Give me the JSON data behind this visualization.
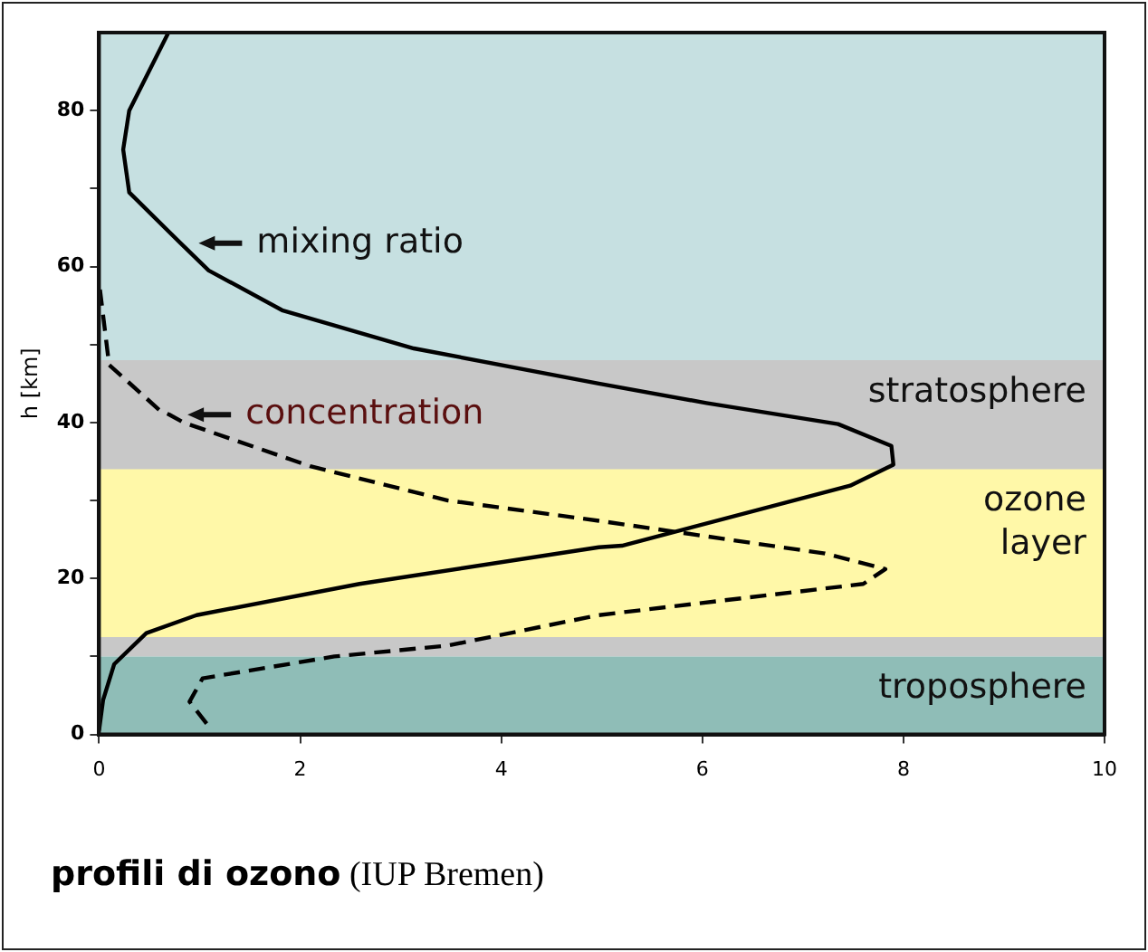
{
  "chart_data": {
    "type": "line",
    "title": "profili di ozono",
    "subtitle": "(IUP Bremen)",
    "ylabel": "h [km]",
    "xlim": [
      0,
      10
    ],
    "xticks": [
      0,
      2,
      4,
      6,
      8,
      10
    ],
    "ylim": [
      0,
      90
    ],
    "yticks": [
      0,
      {
        "value": 10,
        "label": null
      },
      20,
      {
        "value": 30,
        "label": null
      },
      40,
      {
        "value": 50,
        "label": null
      },
      60,
      {
        "value": 70,
        "label": null
      },
      80
    ],
    "grid": false,
    "legend": false,
    "marker": "none",
    "bands": [
      {
        "axis": "y",
        "from": 48,
        "to": 90,
        "label": null,
        "color": "#c6e0e1"
      },
      {
        "axis": "y",
        "from": 10,
        "to": 48,
        "label": "stratosphere",
        "color": "#c8c8c8"
      },
      {
        "axis": "y",
        "from": 0,
        "to": 10,
        "label": "troposphere",
        "color": "#8fbdb7"
      },
      {
        "axis": "y",
        "from": 12.5,
        "to": 34,
        "label": "ozone layer",
        "color": "#fff8a8"
      }
    ],
    "annotations": [
      {
        "text": "mixing ratio",
        "x": 0.81,
        "y": 63
      },
      {
        "text": "concentration",
        "x": 0.7,
        "y": 41
      }
    ],
    "series": [
      {
        "color": "#000000",
        "line_style": "solid",
        "x": [
          0,
          0.04,
          0.15,
          0.47,
          0.97,
          2.59,
          4.97,
          5.2,
          7.47,
          7.9,
          7.88,
          7.35,
          6.04,
          4.97,
          3.13,
          1.82,
          1.09,
          0.81,
          0.3,
          0.24,
          0.3,
          0.69
        ],
        "values": [
          0.5,
          4.4,
          9,
          13,
          15.3,
          19.3,
          24,
          24.2,
          31.9,
          34.6,
          37,
          39.8,
          42.5,
          45,
          49.5,
          54.4,
          59.5,
          63,
          69.5,
          75,
          80,
          90
        ]
      },
      {
        "color": "#000000",
        "line_style": "dashed",
        "x": [
          1.07,
          0.9,
          1.03,
          2.34,
          3.47,
          4.97,
          7.6,
          7.82,
          7.22,
          4.97,
          3.47,
          2.1,
          0.84,
          0.7,
          0.6,
          0.1,
          0
        ],
        "values": [
          1.4,
          4.2,
          7.2,
          10,
          11.4,
          15.3,
          19.3,
          21.2,
          23.2,
          27.4,
          30,
          34.4,
          40,
          41,
          41.6,
          47.4,
          58
        ]
      }
    ]
  }
}
